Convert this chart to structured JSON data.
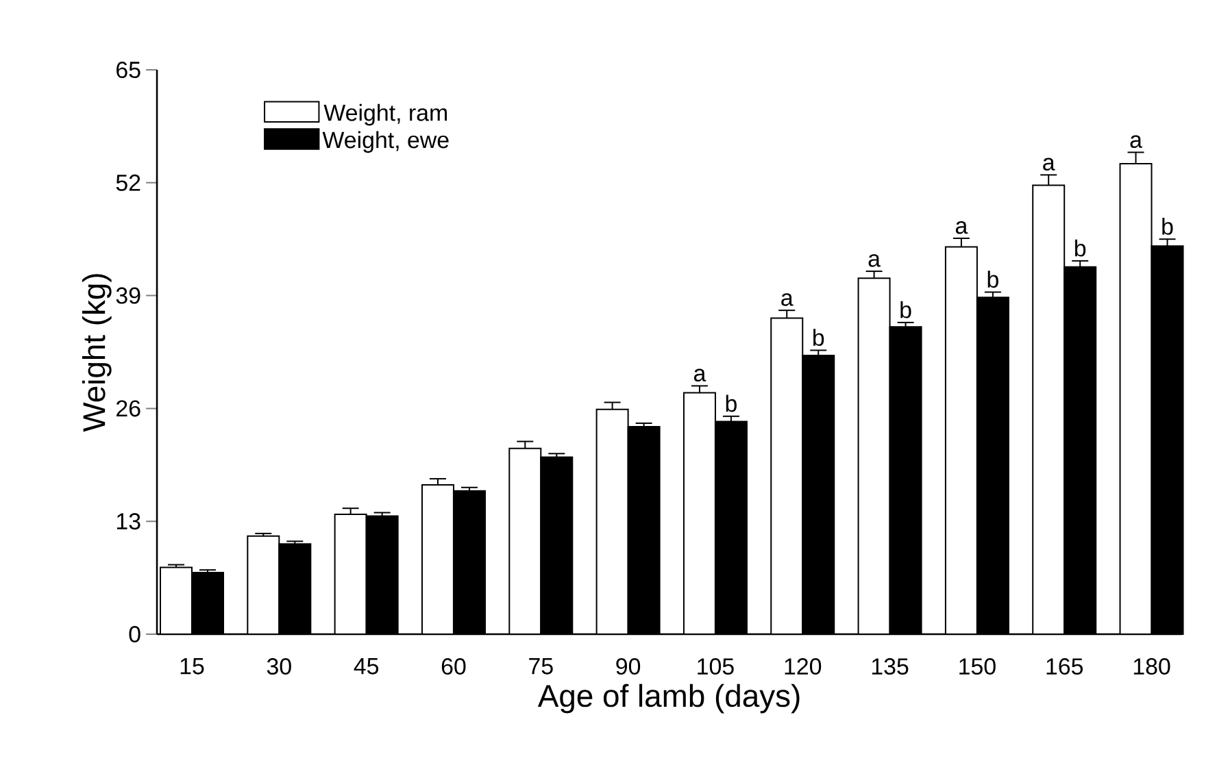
{
  "chart_data": {
    "type": "bar",
    "xlabel": "Age of lamb (days)",
    "ylabel": "Weight (kg)",
    "categories": [
      "15",
      "30",
      "45",
      "60",
      "75",
      "90",
      "105",
      "120",
      "135",
      "150",
      "165",
      "180"
    ],
    "series": [
      {
        "name": "Weight, ram",
        "color": "#ffffff",
        "values": [
          7.7,
          11.3,
          13.8,
          17.2,
          21.4,
          25.9,
          27.8,
          36.4,
          41.0,
          44.6,
          51.7,
          54.2
        ],
        "errors": [
          0.3,
          0.3,
          0.7,
          0.7,
          0.8,
          0.8,
          0.8,
          0.9,
          0.8,
          1.0,
          1.2,
          1.3
        ]
      },
      {
        "name": "Weight, ewe",
        "color": "#000000",
        "values": [
          7.1,
          10.4,
          13.6,
          16.5,
          20.4,
          23.9,
          24.5,
          32.1,
          35.4,
          38.8,
          42.3,
          44.7
        ],
        "errors": [
          0.3,
          0.3,
          0.4,
          0.4,
          0.4,
          0.4,
          0.6,
          0.6,
          0.5,
          0.6,
          0.7,
          0.8
        ]
      }
    ],
    "ylim": [
      0,
      65
    ],
    "yticks": [
      0,
      13,
      26,
      39,
      52,
      65
    ],
    "legend": "top left",
    "annotations": [
      {
        "text": "a",
        "x": "105",
        "y": 27.8
      },
      {
        "text": "b",
        "x": "105",
        "y": 24.5
      },
      {
        "text": "a",
        "x": "120",
        "y": 36.4
      },
      {
        "text": "b",
        "x": "120",
        "y": 32.1
      },
      {
        "text": "a",
        "x": "135",
        "y": 41.0
      },
      {
        "text": "b",
        "x": "135",
        "y": 35.4
      },
      {
        "text": "a",
        "x": "150",
        "y": 44.6
      },
      {
        "text": "b",
        "x": "150",
        "y": 38.8
      },
      {
        "text": "a",
        "x": "165",
        "y": 51.7
      },
      {
        "text": "b",
        "x": "165",
        "y": 42.3
      },
      {
        "text": "a",
        "x": "180",
        "y": 54.2
      },
      {
        "text": "b",
        "x": "180",
        "y": 44.7
      }
    ]
  }
}
